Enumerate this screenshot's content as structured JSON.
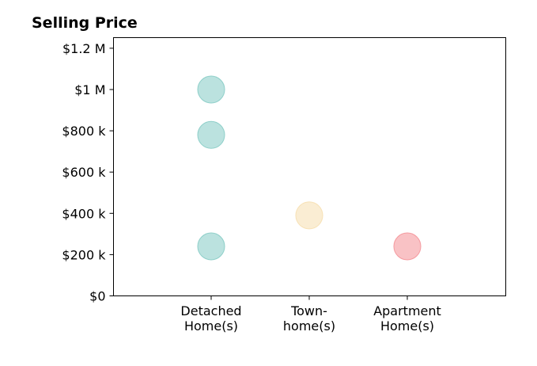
{
  "chart_data": {
    "type": "scatter",
    "title": "Selling Price",
    "xlabel": "",
    "ylabel": "",
    "categories": [
      [
        "Detached",
        "Home(s)"
      ],
      [
        "Town-",
        "home(s)"
      ],
      [
        "Apartment",
        "Home(s)"
      ]
    ],
    "ylim": [
      0,
      1250000
    ],
    "yticks": [
      {
        "value": 0,
        "label": "$0"
      },
      {
        "value": 200000,
        "label": "$200 k"
      },
      {
        "value": 400000,
        "label": "$400 k"
      },
      {
        "value": 600000,
        "label": "$600 k"
      },
      {
        "value": 800000,
        "label": "$800 k"
      },
      {
        "value": 1000000,
        "label": "$1 M"
      },
      {
        "value": 1200000,
        "label": "$1.2 M"
      }
    ],
    "grid": false,
    "legend": "none",
    "points": [
      {
        "category": 0,
        "y": 1000000,
        "color": "#8ecfc9"
      },
      {
        "category": 0,
        "y": 780000,
        "color": "#8ecfc9"
      },
      {
        "category": 0,
        "y": 240000,
        "color": "#8ecfc9"
      },
      {
        "category": 1,
        "y": 390000,
        "color": "#f7e1b5"
      },
      {
        "category": 2,
        "y": 240000,
        "color": "#f59a9f"
      }
    ]
  }
}
